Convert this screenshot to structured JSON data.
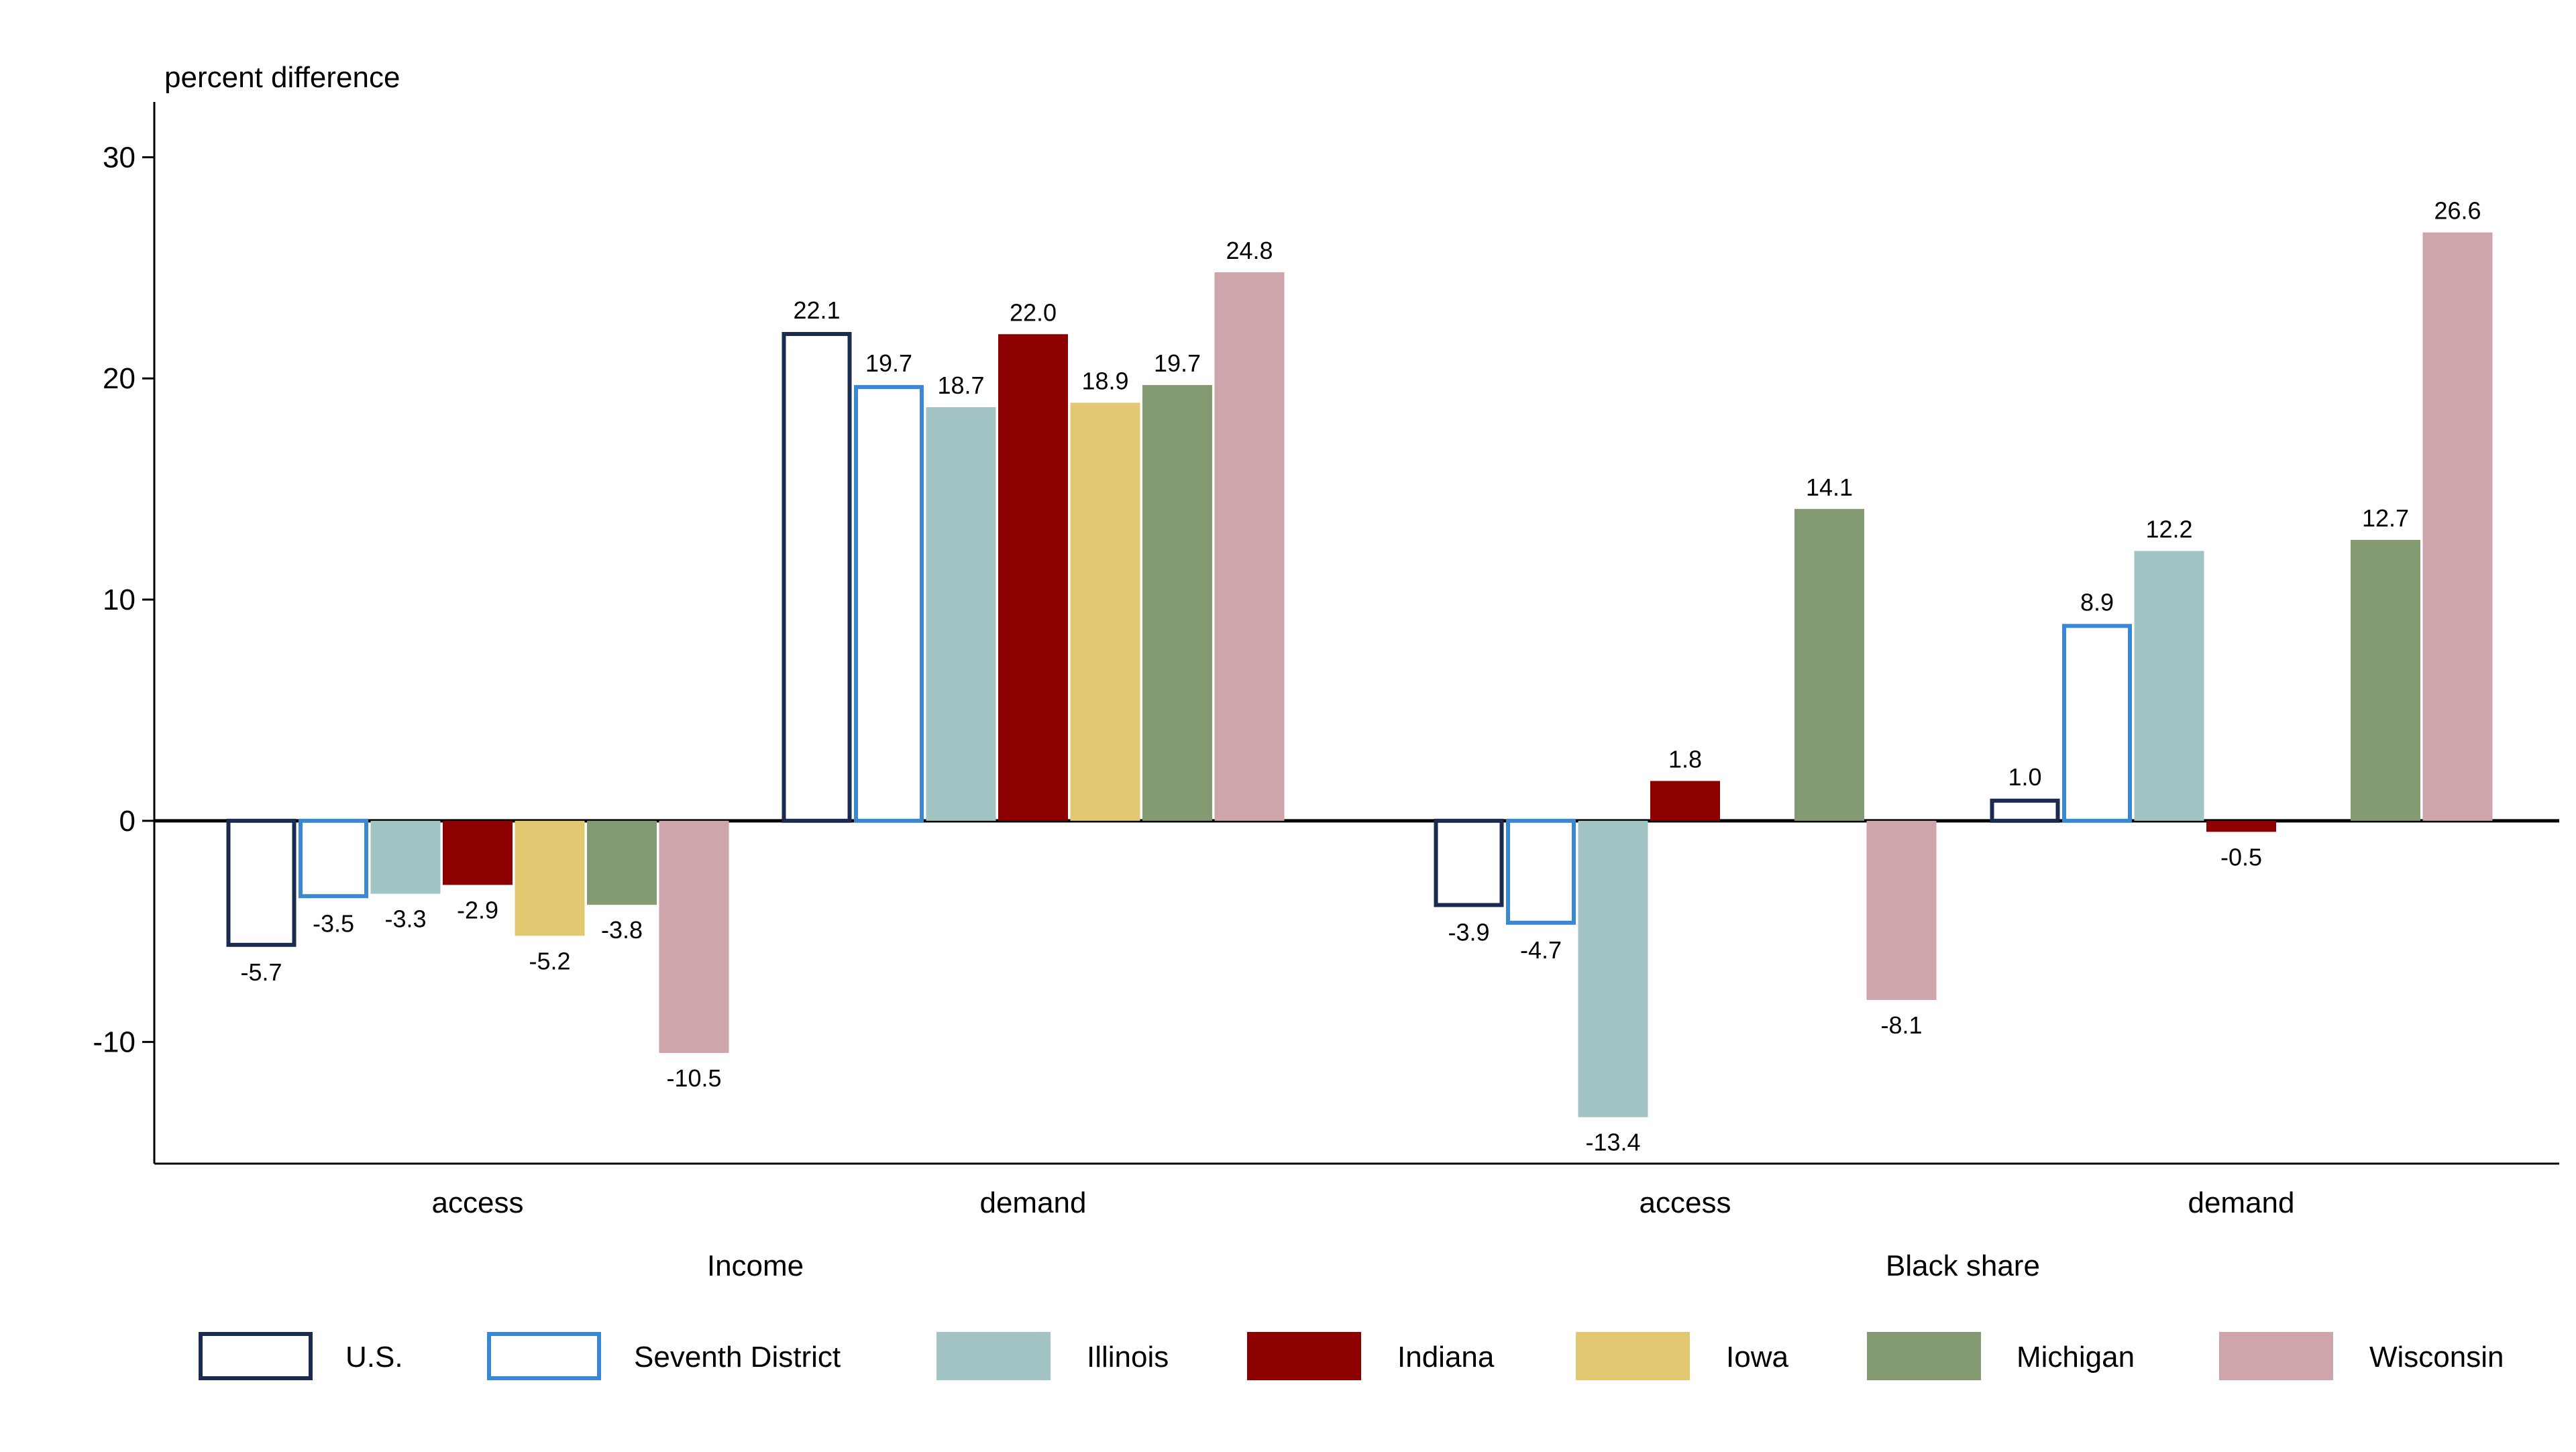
{
  "chart_data": {
    "type": "bar",
    "ylabel": "percent difference",
    "ylim": [
      -15.5,
      32.5
    ],
    "yticks": [
      -10,
      0,
      10,
      20,
      30
    ],
    "grid": false,
    "legend_position": "bottom",
    "groups": [
      {
        "label": "Income",
        "categories": [
          "access",
          "demand"
        ]
      },
      {
        "label": "Black share",
        "categories": [
          "access",
          "demand"
        ]
      }
    ],
    "series": [
      {
        "name": "U.S.",
        "style": "outline",
        "color": "#1a2b4f",
        "values": [
          -5.7,
          22.1,
          -3.9,
          1.0
        ]
      },
      {
        "name": "Seventh District",
        "style": "outline",
        "color": "#3a87d6",
        "values": [
          -3.5,
          19.7,
          -4.7,
          8.9
        ]
      },
      {
        "name": "Illinois",
        "style": "fill",
        "color": "#a3c4c5",
        "values": [
          -3.3,
          18.7,
          -13.4,
          12.2
        ]
      },
      {
        "name": "Indiana",
        "style": "fill",
        "color": "#8c0000",
        "values": [
          -2.9,
          22.0,
          1.8,
          -0.5
        ]
      },
      {
        "name": "Iowa",
        "style": "fill",
        "color": "#e2c870",
        "values": [
          -5.2,
          18.9,
          null,
          null
        ]
      },
      {
        "name": "Michigan",
        "style": "fill",
        "color": "#849a72",
        "values": [
          -3.8,
          19.7,
          14.1,
          12.7
        ]
      },
      {
        "name": "Wisconsin",
        "style": "fill",
        "color": "#cda5aa",
        "values": [
          -10.5,
          24.8,
          -8.1,
          26.6
        ]
      }
    ]
  }
}
